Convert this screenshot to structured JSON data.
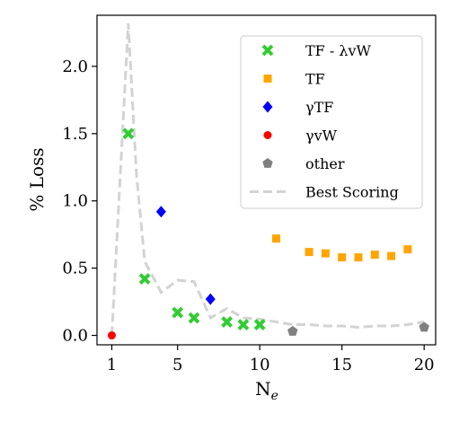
{
  "chart_data": {
    "type": "scatter",
    "xlabel": "N",
    "xlabel_subscript": "e",
    "ylabel": "% Loss",
    "xlim": [
      0.1,
      20.7
    ],
    "ylim": [
      -0.07,
      2.38
    ],
    "xticks": [
      1,
      5,
      10,
      15,
      20
    ],
    "yticks": [
      0.0,
      0.5,
      1.0,
      1.5,
      2.0
    ],
    "ytick_labels": [
      "0.0",
      "0.5",
      "1.0",
      "1.5",
      "2.0"
    ],
    "grid": false,
    "legend_position": "top-right",
    "series": [
      {
        "name": "TF - λvW",
        "marker": "x",
        "color": "#33cc33",
        "points": [
          [
            2,
            1.5
          ],
          [
            3,
            0.42
          ],
          [
            5,
            0.17
          ],
          [
            6,
            0.13
          ],
          [
            8,
            0.1
          ],
          [
            9,
            0.08
          ],
          [
            10,
            0.08
          ]
        ]
      },
      {
        "name": "TF",
        "marker": "square",
        "color": "#ffa500",
        "points": [
          [
            11,
            0.72
          ],
          [
            13,
            0.62
          ],
          [
            14,
            0.61
          ],
          [
            15,
            0.58
          ],
          [
            16,
            0.58
          ],
          [
            17,
            0.6
          ],
          [
            18,
            0.59
          ],
          [
            19,
            0.64
          ]
        ]
      },
      {
        "name": "γTF",
        "marker": "diamond",
        "color": "#0000ff",
        "points": [
          [
            4,
            0.92
          ],
          [
            7,
            0.27
          ]
        ]
      },
      {
        "name": "γvW",
        "marker": "circle",
        "color": "#ff0000",
        "points": [
          [
            1,
            0.0
          ]
        ]
      },
      {
        "name": "other",
        "marker": "pentagon",
        "color": "#808080",
        "points": [
          [
            12,
            0.03
          ],
          [
            20,
            0.06
          ]
        ]
      },
      {
        "name": "Best Scoring",
        "marker": "dashed-line",
        "color": "#d3d3d3",
        "points": [
          [
            1,
            0.0
          ],
          [
            2,
            2.32
          ],
          [
            2.5,
            1.2
          ],
          [
            3,
            0.55
          ],
          [
            4,
            0.32
          ],
          [
            5,
            0.41
          ],
          [
            6,
            0.4
          ],
          [
            7,
            0.13
          ],
          [
            8,
            0.2
          ],
          [
            9,
            0.13
          ],
          [
            10,
            0.12
          ],
          [
            11,
            0.1
          ],
          [
            12,
            0.08
          ],
          [
            13,
            0.08
          ],
          [
            14,
            0.07
          ],
          [
            15,
            0.07
          ],
          [
            16,
            0.06
          ],
          [
            17,
            0.07
          ],
          [
            18,
            0.07
          ],
          [
            19,
            0.08
          ],
          [
            20,
            0.1
          ]
        ]
      }
    ]
  }
}
